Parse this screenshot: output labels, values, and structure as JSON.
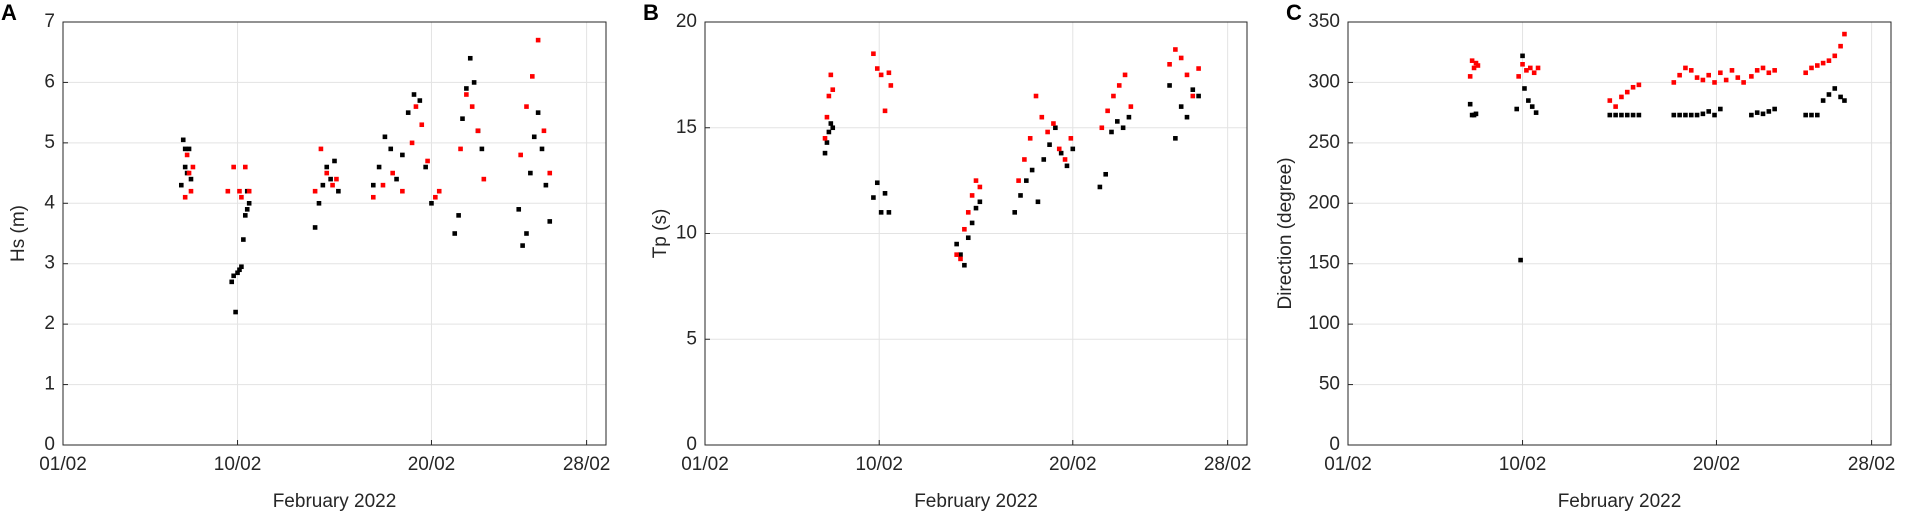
{
  "chart_data": [
    {
      "type": "scatter",
      "panel_label": "A",
      "xlabel": "February 2022",
      "ylabel": "Hs (m)",
      "xlim": [
        1,
        29
      ],
      "xticks": [
        {
          "value": 1,
          "label": "01/02"
        },
        {
          "value": 10,
          "label": "10/02"
        },
        {
          "value": 20,
          "label": "20/02"
        },
        {
          "value": 28,
          "label": "28/02"
        }
      ],
      "ylim": [
        0,
        7
      ],
      "yticks": [
        0,
        1,
        2,
        3,
        4,
        5,
        6,
        7
      ],
      "grid": true,
      "series": [
        {
          "color": "#000000",
          "x": [
            7.1,
            7.2,
            7.3,
            7.3,
            7.4,
            7.5,
            7.6,
            9.7,
            9.8,
            9.9,
            10.0,
            10.1,
            10.2,
            10.3,
            10.4,
            10.5,
            10.5,
            10.6,
            14.0,
            14.2,
            14.4,
            14.6,
            14.8,
            15.0,
            15.2,
            17.0,
            17.3,
            17.6,
            17.9,
            18.2,
            18.5,
            18.8,
            19.1,
            19.4,
            19.7,
            20.0,
            21.2,
            21.4,
            21.6,
            21.8,
            22.0,
            22.2,
            22.4,
            22.6,
            24.5,
            24.7,
            24.9,
            25.1,
            25.3,
            25.5,
            25.7,
            25.9,
            26.1
          ],
          "values": [
            4.3,
            5.05,
            4.9,
            4.6,
            4.5,
            4.9,
            4.4,
            2.7,
            2.8,
            2.2,
            2.85,
            2.9,
            2.95,
            3.4,
            3.8,
            4.2,
            3.9,
            4.0,
            3.6,
            4.0,
            4.3,
            4.6,
            4.4,
            4.7,
            4.2,
            4.3,
            4.6,
            5.1,
            4.9,
            4.4,
            4.8,
            5.5,
            5.8,
            5.7,
            4.6,
            4.0,
            3.5,
            3.8,
            5.4,
            5.9,
            6.4,
            6.0,
            5.2,
            4.9,
            3.9,
            3.3,
            3.5,
            4.5,
            5.1,
            5.5,
            4.9,
            4.3,
            3.7
          ]
        },
        {
          "color": "#ff0000",
          "x": [
            7.3,
            7.4,
            7.5,
            7.6,
            7.7,
            9.5,
            9.8,
            10.1,
            10.4,
            10.6,
            10.2,
            14.0,
            14.3,
            14.6,
            14.9,
            15.1,
            17.0,
            17.5,
            18.0,
            18.5,
            19.0,
            19.2,
            19.5,
            19.8,
            20.2,
            20.4,
            21.5,
            21.8,
            22.1,
            22.4,
            22.7,
            24.6,
            24.9,
            25.2,
            25.5,
            25.8,
            26.1
          ],
          "values": [
            4.1,
            4.8,
            4.5,
            4.2,
            4.6,
            4.2,
            4.6,
            4.2,
            4.6,
            4.2,
            4.1,
            4.2,
            4.9,
            4.5,
            4.3,
            4.4,
            4.1,
            4.3,
            4.5,
            4.2,
            5.0,
            5.6,
            5.3,
            4.7,
            4.1,
            4.2,
            4.9,
            5.8,
            5.6,
            5.2,
            4.4,
            4.8,
            5.6,
            6.1,
            6.7,
            5.2,
            4.5
          ]
        }
      ]
    },
    {
      "type": "scatter",
      "panel_label": "B",
      "xlabel": "February 2022",
      "ylabel": "Tp (s)",
      "xlim": [
        1,
        29
      ],
      "xticks": [
        {
          "value": 1,
          "label": "01/02"
        },
        {
          "value": 10,
          "label": "10/02"
        },
        {
          "value": 20,
          "label": "20/02"
        },
        {
          "value": 28,
          "label": "28/02"
        }
      ],
      "ylim": [
        0,
        20
      ],
      "yticks": [
        0,
        5,
        10,
        15,
        20
      ],
      "grid": true,
      "series": [
        {
          "color": "#000000",
          "x": [
            7.2,
            7.3,
            7.4,
            7.5,
            7.6,
            9.7,
            9.9,
            10.1,
            10.3,
            10.5,
            14.0,
            14.2,
            14.4,
            14.6,
            14.8,
            15.0,
            15.2,
            17.0,
            17.3,
            17.6,
            17.9,
            18.2,
            18.5,
            18.8,
            19.1,
            19.4,
            19.7,
            20.0,
            21.4,
            21.7,
            22.0,
            22.3,
            22.6,
            22.9,
            25.0,
            25.3,
            25.6,
            25.9,
            26.2,
            26.5
          ],
          "values": [
            13.8,
            14.3,
            14.8,
            15.2,
            15.0,
            11.7,
            12.4,
            11.0,
            11.9,
            11.0,
            9.5,
            9.0,
            8.5,
            9.8,
            10.5,
            11.2,
            11.5,
            11.0,
            11.8,
            12.5,
            13.0,
            11.5,
            13.5,
            14.2,
            15.0,
            13.8,
            13.2,
            14.0,
            12.2,
            12.8,
            14.8,
            15.3,
            15.0,
            15.5,
            17.0,
            14.5,
            16.0,
            15.5,
            16.8,
            16.5
          ]
        },
        {
          "color": "#ff0000",
          "x": [
            7.2,
            7.3,
            7.4,
            7.5,
            7.6,
            9.7,
            9.9,
            10.1,
            10.3,
            10.5,
            10.6,
            14.0,
            14.2,
            14.4,
            14.6,
            14.8,
            15.0,
            15.2,
            17.2,
            17.5,
            17.8,
            18.1,
            18.4,
            18.7,
            19.0,
            19.3,
            19.6,
            19.9,
            21.5,
            21.8,
            22.1,
            22.4,
            22.7,
            23.0,
            25.0,
            25.3,
            25.6,
            25.9,
            26.2,
            26.5
          ],
          "values": [
            14.5,
            15.5,
            16.5,
            17.5,
            16.8,
            18.5,
            17.8,
            17.5,
            15.8,
            17.6,
            17.0,
            9.0,
            8.8,
            10.2,
            11.0,
            11.8,
            12.5,
            12.2,
            12.5,
            13.5,
            14.5,
            16.5,
            15.5,
            14.8,
            15.2,
            14.0,
            13.5,
            14.5,
            15.0,
            15.8,
            16.5,
            17.0,
            17.5,
            16.0,
            18.0,
            18.7,
            18.3,
            17.5,
            16.5,
            17.8
          ]
        }
      ]
    },
    {
      "type": "scatter",
      "panel_label": "C",
      "xlabel": "February 2022",
      "ylabel": "Direction (degree)",
      "xlim": [
        1,
        29
      ],
      "xticks": [
        {
          "value": 1,
          "label": "01/02"
        },
        {
          "value": 10,
          "label": "10/02"
        },
        {
          "value": 20,
          "label": "20/02"
        },
        {
          "value": 28,
          "label": "28/02"
        }
      ],
      "ylim": [
        0,
        350
      ],
      "yticks": [
        0,
        50,
        100,
        150,
        200,
        250,
        300,
        350
      ],
      "grid": true,
      "series": [
        {
          "color": "#000000",
          "x": [
            7.3,
            7.4,
            7.5,
            7.6,
            9.7,
            9.9,
            10.0,
            10.1,
            10.3,
            10.5,
            10.7,
            14.5,
            14.8,
            15.1,
            15.4,
            15.7,
            16.0,
            17.8,
            18.1,
            18.4,
            18.7,
            19.0,
            19.3,
            19.6,
            19.9,
            20.2,
            21.8,
            22.1,
            22.4,
            22.7,
            23.0,
            24.6,
            24.9,
            25.2,
            25.5,
            25.8,
            26.1,
            26.4,
            26.6
          ],
          "values": [
            282,
            273,
            273,
            274,
            278,
            153,
            322,
            295,
            285,
            280,
            275,
            273,
            273,
            273,
            273,
            273,
            273,
            273,
            273,
            273,
            273,
            273,
            274,
            276,
            273,
            278,
            273,
            275,
            274,
            276,
            278,
            273,
            273,
            273,
            285,
            290,
            295,
            288,
            285
          ]
        },
        {
          "color": "#ff0000",
          "x": [
            7.3,
            7.4,
            7.5,
            7.6,
            7.7,
            9.8,
            10.0,
            10.2,
            10.4,
            10.6,
            10.8,
            14.5,
            14.8,
            15.1,
            15.4,
            15.7,
            16.0,
            17.8,
            18.1,
            18.4,
            18.7,
            19.0,
            19.3,
            19.6,
            19.9,
            20.2,
            20.5,
            20.8,
            21.1,
            21.4,
            21.8,
            22.1,
            22.4,
            22.7,
            23.0,
            24.6,
            24.9,
            25.2,
            25.5,
            25.8,
            26.1,
            26.4,
            26.6
          ],
          "values": [
            305,
            318,
            312,
            316,
            314,
            305,
            315,
            310,
            312,
            308,
            312,
            285,
            280,
            288,
            292,
            296,
            298,
            300,
            306,
            312,
            310,
            304,
            302,
            306,
            300,
            308,
            302,
            310,
            304,
            300,
            305,
            310,
            312,
            308,
            310,
            308,
            312,
            314,
            316,
            318,
            322,
            330,
            340
          ]
        }
      ]
    }
  ]
}
